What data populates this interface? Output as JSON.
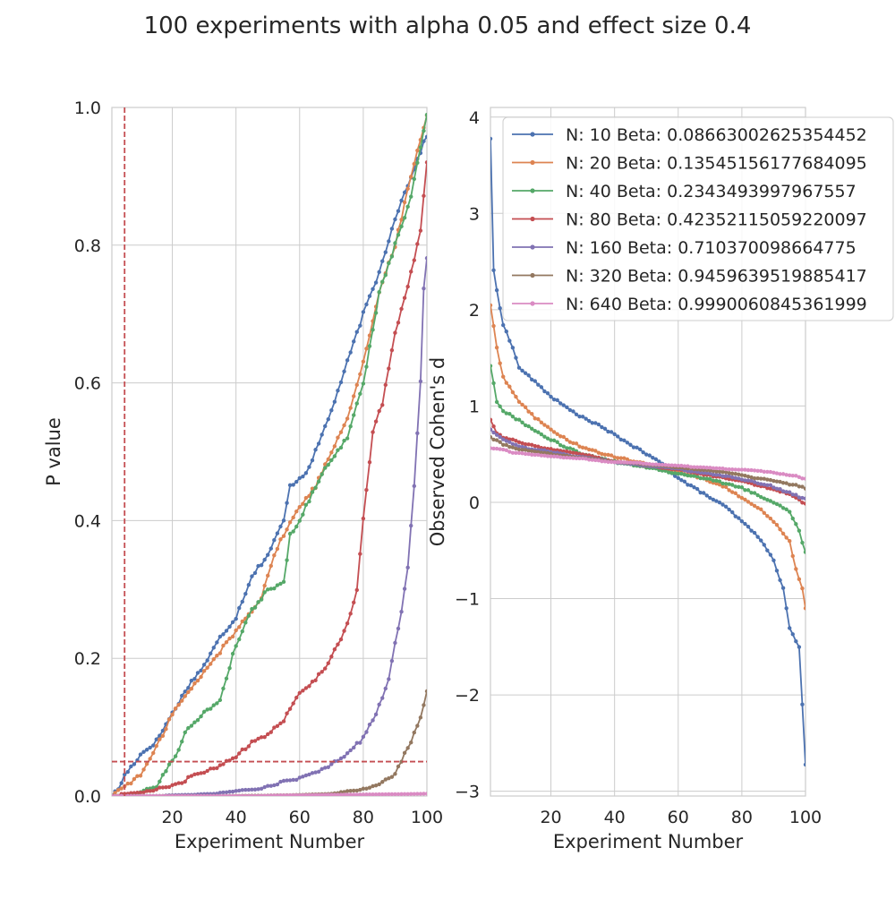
{
  "figure": {
    "title": "100 experiments with alpha 0.05 and effect size 0.4"
  },
  "chart_data": [
    {
      "type": "line",
      "title": "",
      "xlabel": "Experiment Number",
      "ylabel": "P value",
      "xlim": [
        1,
        100
      ],
      "ylim": [
        0,
        1.0
      ],
      "xticks": [
        "20",
        "40",
        "60",
        "80",
        "100"
      ],
      "yticks": [
        "0.0",
        "0.2",
        "0.4",
        "0.6",
        "0.8",
        "1.0"
      ],
      "grid": true,
      "reference_lines": [
        {
          "orientation": "vertical",
          "x": 5,
          "color": "#c44e52",
          "style": "dashed"
        },
        {
          "orientation": "horizontal",
          "y": 0.05,
          "color": "#c44e52",
          "style": "dashed"
        }
      ],
      "series": [
        {
          "name": "N: 10",
          "color": "#4c72b0",
          "anchors": [
            [
              1,
              0.0
            ],
            [
              3,
              0.01
            ],
            [
              5,
              0.03
            ],
            [
              10,
              0.06
            ],
            [
              15,
              0.08
            ],
            [
              20,
              0.12
            ],
            [
              25,
              0.16
            ],
            [
              30,
              0.19
            ],
            [
              35,
              0.23
            ],
            [
              40,
              0.26
            ],
            [
              45,
              0.32
            ],
            [
              50,
              0.35
            ],
            [
              55,
              0.4
            ],
            [
              57,
              0.45
            ],
            [
              62,
              0.47
            ],
            [
              65,
              0.5
            ],
            [
              70,
              0.56
            ],
            [
              75,
              0.63
            ],
            [
              80,
              0.7
            ],
            [
              85,
              0.76
            ],
            [
              90,
              0.84
            ],
            [
              95,
              0.9
            ],
            [
              100,
              0.96
            ]
          ]
        },
        {
          "name": "N: 20",
          "color": "#dd8452",
          "anchors": [
            [
              1,
              0.0
            ],
            [
              5,
              0.015
            ],
            [
              10,
              0.03
            ],
            [
              15,
              0.07
            ],
            [
              20,
              0.12
            ],
            [
              25,
              0.15
            ],
            [
              30,
              0.18
            ],
            [
              35,
              0.21
            ],
            [
              40,
              0.24
            ],
            [
              45,
              0.27
            ],
            [
              48,
              0.29
            ],
            [
              52,
              0.35
            ],
            [
              55,
              0.38
            ],
            [
              60,
              0.42
            ],
            [
              65,
              0.45
            ],
            [
              70,
              0.5
            ],
            [
              75,
              0.55
            ],
            [
              80,
              0.63
            ],
            [
              85,
              0.73
            ],
            [
              90,
              0.8
            ],
            [
              95,
              0.9
            ],
            [
              100,
              0.99
            ]
          ]
        },
        {
          "name": "N: 40",
          "color": "#55a868",
          "anchors": [
            [
              1,
              0.0
            ],
            [
              10,
              0.005
            ],
            [
              15,
              0.015
            ],
            [
              20,
              0.05
            ],
            [
              25,
              0.1
            ],
            [
              30,
              0.12
            ],
            [
              35,
              0.14
            ],
            [
              40,
              0.22
            ],
            [
              45,
              0.27
            ],
            [
              50,
              0.3
            ],
            [
              55,
              0.31
            ],
            [
              57,
              0.38
            ],
            [
              60,
              0.4
            ],
            [
              65,
              0.45
            ],
            [
              70,
              0.49
            ],
            [
              75,
              0.52
            ],
            [
              80,
              0.6
            ],
            [
              85,
              0.73
            ],
            [
              90,
              0.8
            ],
            [
              95,
              0.87
            ],
            [
              100,
              0.99
            ]
          ]
        },
        {
          "name": "N: 80",
          "color": "#c44e52",
          "anchors": [
            [
              1,
              0.0
            ],
            [
              10,
              0.005
            ],
            [
              20,
              0.015
            ],
            [
              30,
              0.035
            ],
            [
              40,
              0.055
            ],
            [
              45,
              0.08
            ],
            [
              50,
              0.09
            ],
            [
              55,
              0.11
            ],
            [
              60,
              0.15
            ],
            [
              65,
              0.17
            ],
            [
              70,
              0.2
            ],
            [
              75,
              0.25
            ],
            [
              78,
              0.3
            ],
            [
              80,
              0.4
            ],
            [
              83,
              0.53
            ],
            [
              86,
              0.57
            ],
            [
              90,
              0.67
            ],
            [
              95,
              0.76
            ],
            [
              98,
              0.82
            ],
            [
              100,
              0.92
            ]
          ]
        },
        {
          "name": "N: 160",
          "color": "#8172b3",
          "anchors": [
            [
              1,
              0.0
            ],
            [
              20,
              0.0
            ],
            [
              30,
              0.002
            ],
            [
              40,
              0.007
            ],
            [
              50,
              0.015
            ],
            [
              60,
              0.027
            ],
            [
              70,
              0.045
            ],
            [
              75,
              0.06
            ],
            [
              80,
              0.085
            ],
            [
              85,
              0.13
            ],
            [
              88,
              0.17
            ],
            [
              90,
              0.22
            ],
            [
              92,
              0.27
            ],
            [
              94,
              0.33
            ],
            [
              96,
              0.45
            ],
            [
              98,
              0.6
            ],
            [
              99,
              0.74
            ],
            [
              100,
              0.78
            ]
          ]
        },
        {
          "name": "N: 320",
          "color": "#937860",
          "anchors": [
            [
              1,
              0.0
            ],
            [
              50,
              0.0
            ],
            [
              60,
              0.0
            ],
            [
              70,
              0.003
            ],
            [
              80,
              0.01
            ],
            [
              85,
              0.018
            ],
            [
              90,
              0.03
            ],
            [
              93,
              0.06
            ],
            [
              95,
              0.08
            ],
            [
              97,
              0.1
            ],
            [
              100,
              0.15
            ]
          ]
        },
        {
          "name": "N: 640",
          "color": "#da8bc3",
          "anchors": [
            [
              1,
              0.0
            ],
            [
              100,
              0.0005
            ]
          ]
        }
      ]
    },
    {
      "type": "line",
      "title": "",
      "xlabel": "Experiment Number",
      "ylabel": "Observed Cohen's d",
      "xlim": [
        1,
        100
      ],
      "ylim": [
        -3.05,
        4.1
      ],
      "xticks": [
        "20",
        "40",
        "60",
        "80",
        "100"
      ],
      "yticks": [
        "−3",
        "−2",
        "−1",
        "0",
        "1",
        "2",
        "3",
        "4"
      ],
      "grid": true,
      "legend": "top-right",
      "series": [
        {
          "name": "N: 10 Beta: 0.08663002625354452",
          "color": "#4c72b0",
          "anchors": [
            [
              1,
              3.78
            ],
            [
              2,
              2.4
            ],
            [
              3,
              2.2
            ],
            [
              5,
              1.85
            ],
            [
              8,
              1.6
            ],
            [
              10,
              1.4
            ],
            [
              15,
              1.25
            ],
            [
              20,
              1.1
            ],
            [
              25,
              0.98
            ],
            [
              30,
              0.88
            ],
            [
              35,
              0.8
            ],
            [
              40,
              0.7
            ],
            [
              45,
              0.6
            ],
            [
              50,
              0.5
            ],
            [
              55,
              0.4
            ],
            [
              60,
              0.25
            ],
            [
              65,
              0.15
            ],
            [
              70,
              0.05
            ],
            [
              75,
              -0.05
            ],
            [
              80,
              -0.2
            ],
            [
              85,
              -0.35
            ],
            [
              90,
              -0.6
            ],
            [
              93,
              -0.9
            ],
            [
              95,
              -1.3
            ],
            [
              97,
              -1.45
            ],
            [
              98,
              -1.5
            ],
            [
              99,
              -2.1
            ],
            [
              100,
              -2.72
            ]
          ]
        },
        {
          "name": "N: 20 Beta: 0.13545156177684095",
          "color": "#dd8452",
          "anchors": [
            [
              1,
              2.05
            ],
            [
              3,
              1.6
            ],
            [
              5,
              1.3
            ],
            [
              10,
              1.05
            ],
            [
              15,
              0.88
            ],
            [
              20,
              0.75
            ],
            [
              25,
              0.65
            ],
            [
              30,
              0.57
            ],
            [
              35,
              0.52
            ],
            [
              40,
              0.47
            ],
            [
              50,
              0.4
            ],
            [
              60,
              0.32
            ],
            [
              70,
              0.22
            ],
            [
              75,
              0.15
            ],
            [
              80,
              0.05
            ],
            [
              85,
              -0.05
            ],
            [
              90,
              -0.2
            ],
            [
              95,
              -0.4
            ],
            [
              97,
              -0.7
            ],
            [
              99,
              -0.9
            ],
            [
              100,
              -1.1
            ]
          ]
        },
        {
          "name": "N: 40 Beta: 0.2343493997967557",
          "color": "#55a868",
          "anchors": [
            [
              1,
              1.42
            ],
            [
              3,
              1.05
            ],
            [
              5,
              0.95
            ],
            [
              10,
              0.85
            ],
            [
              15,
              0.75
            ],
            [
              20,
              0.65
            ],
            [
              25,
              0.57
            ],
            [
              30,
              0.5
            ],
            [
              40,
              0.42
            ],
            [
              50,
              0.36
            ],
            [
              60,
              0.3
            ],
            [
              70,
              0.24
            ],
            [
              80,
              0.15
            ],
            [
              85,
              0.08
            ],
            [
              90,
              0.0
            ],
            [
              95,
              -0.1
            ],
            [
              98,
              -0.3
            ],
            [
              100,
              -0.52
            ]
          ]
        },
        {
          "name": "N: 80 Beta: 0.42352115059220097",
          "color": "#c44e52",
          "anchors": [
            [
              1,
              0.86
            ],
            [
              3,
              0.72
            ],
            [
              5,
              0.68
            ],
            [
              10,
              0.62
            ],
            [
              20,
              0.55
            ],
            [
              30,
              0.5
            ],
            [
              40,
              0.42
            ],
            [
              50,
              0.38
            ],
            [
              60,
              0.34
            ],
            [
              70,
              0.28
            ],
            [
              80,
              0.22
            ],
            [
              90,
              0.14
            ],
            [
              95,
              0.08
            ],
            [
              100,
              -0.02
            ]
          ]
        },
        {
          "name": "N: 160 Beta: 0.710370098664775",
          "color": "#8172b3",
          "anchors": [
            [
              1,
              0.76
            ],
            [
              3,
              0.7
            ],
            [
              5,
              0.65
            ],
            [
              10,
              0.58
            ],
            [
              20,
              0.52
            ],
            [
              30,
              0.47
            ],
            [
              40,
              0.42
            ],
            [
              50,
              0.38
            ],
            [
              60,
              0.35
            ],
            [
              70,
              0.3
            ],
            [
              80,
              0.24
            ],
            [
              90,
              0.16
            ],
            [
              95,
              0.1
            ],
            [
              100,
              0.03
            ]
          ]
        },
        {
          "name": "N: 320 Beta: 0.9459639519885417",
          "color": "#937860",
          "anchors": [
            [
              1,
              0.68
            ],
            [
              5,
              0.6
            ],
            [
              10,
              0.55
            ],
            [
              20,
              0.5
            ],
            [
              30,
              0.46
            ],
            [
              40,
              0.42
            ],
            [
              50,
              0.39
            ],
            [
              60,
              0.36
            ],
            [
              70,
              0.33
            ],
            [
              80,
              0.28
            ],
            [
              90,
              0.22
            ],
            [
              95,
              0.19
            ],
            [
              100,
              0.15
            ]
          ]
        },
        {
          "name": "N: 640 Beta: 0.9990060845361999",
          "color": "#da8bc3",
          "anchors": [
            [
              1,
              0.56
            ],
            [
              10,
              0.51
            ],
            [
              20,
              0.48
            ],
            [
              30,
              0.45
            ],
            [
              40,
              0.42
            ],
            [
              50,
              0.4
            ],
            [
              60,
              0.38
            ],
            [
              70,
              0.36
            ],
            [
              80,
              0.34
            ],
            [
              90,
              0.31
            ],
            [
              100,
              0.25
            ]
          ]
        }
      ]
    }
  ]
}
